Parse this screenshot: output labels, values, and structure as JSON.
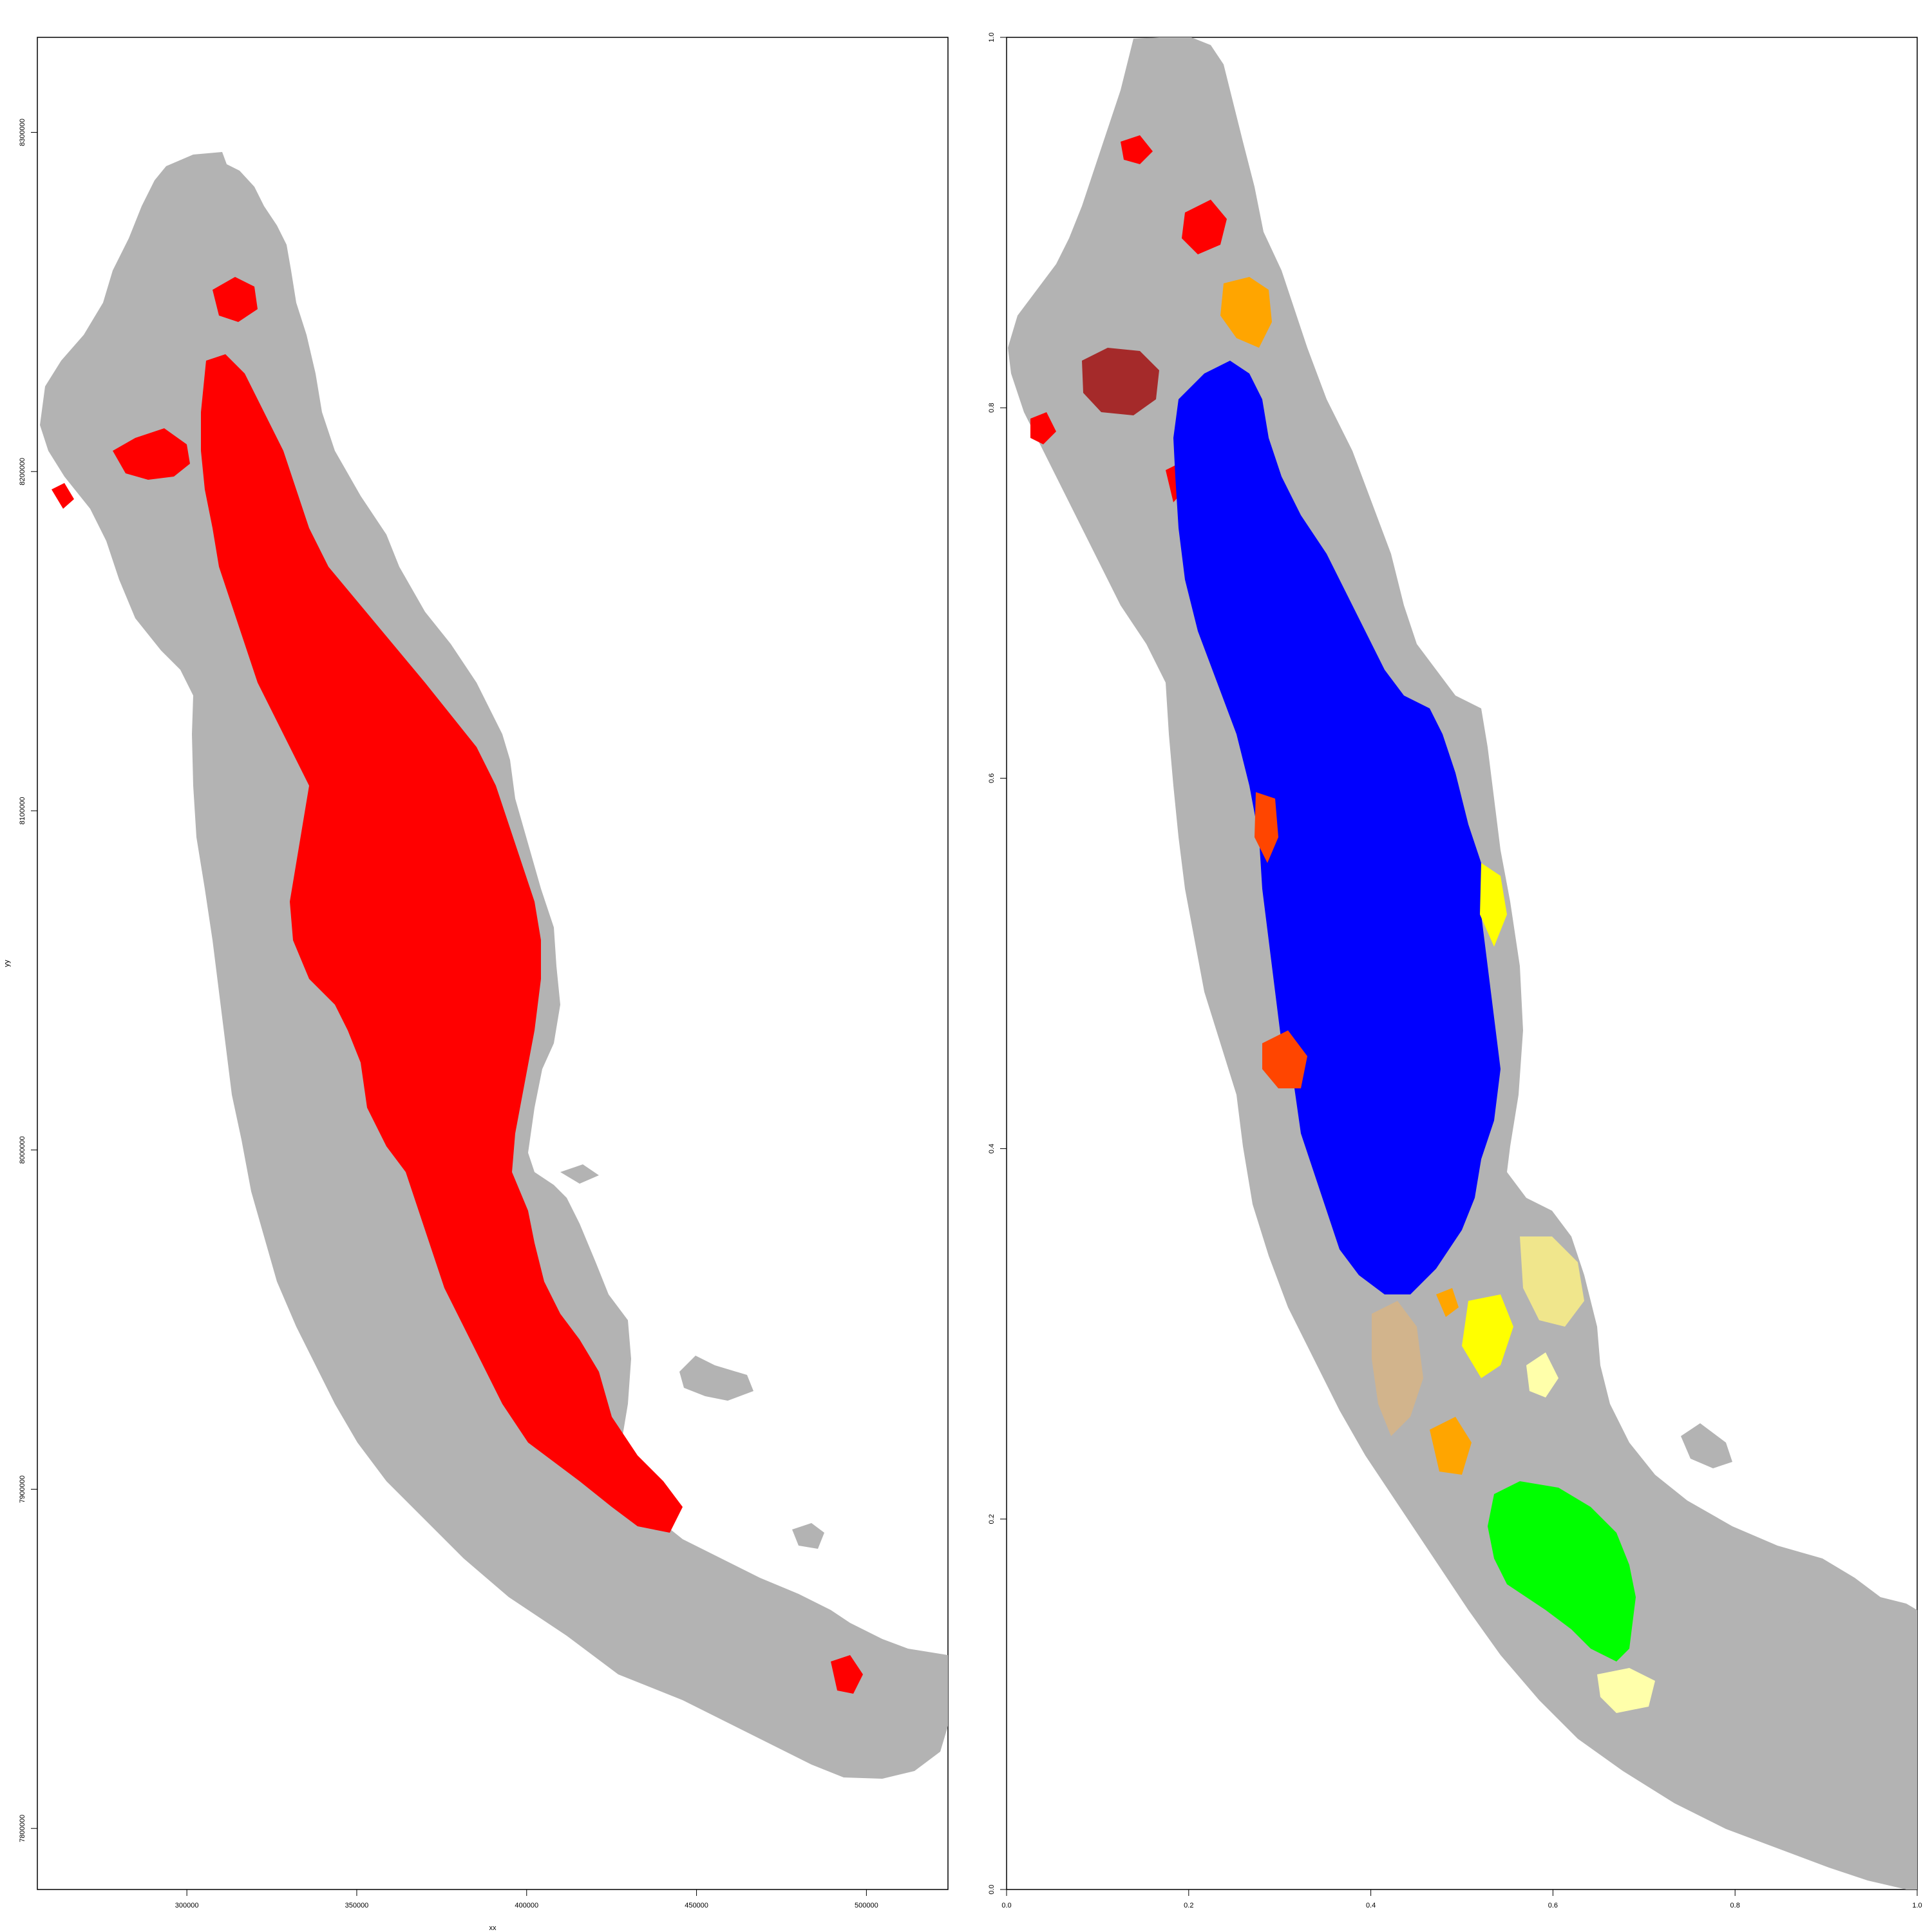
{
  "panels": [
    {
      "id": "left",
      "xlabel": "xx",
      "ylabel": "yy",
      "x_ticks": [
        {
          "value": 300000,
          "label": "300000"
        },
        {
          "value": 350000,
          "label": "350000"
        },
        {
          "value": 400000,
          "label": "400000"
        },
        {
          "value": 450000,
          "label": "450000"
        },
        {
          "value": 500000,
          "label": "500000"
        }
      ],
      "y_ticks": [
        {
          "value": 7800000,
          "label": "7800000"
        },
        {
          "value": 7900000,
          "label": "7900000"
        },
        {
          "value": 8000000,
          "label": "8000000"
        },
        {
          "value": 8100000,
          "label": "8100000"
        },
        {
          "value": 8200000,
          "label": "8200000"
        },
        {
          "value": 8300000,
          "label": "8300000"
        }
      ],
      "xlim": [
        256000,
        524000
      ],
      "ylim": [
        7782000,
        8328000
      ],
      "categories": [
        {
          "name": "background region",
          "color": "#b3b3b3"
        },
        {
          "name": "selected class",
          "color": "#ff0000"
        }
      ]
    },
    {
      "id": "right",
      "xlabel": "",
      "ylabel": "",
      "x_ticks": [
        {
          "value": 0.0,
          "label": "0.0"
        },
        {
          "value": 0.2,
          "label": "0.2"
        },
        {
          "value": 0.4,
          "label": "0.4"
        },
        {
          "value": 0.6,
          "label": "0.6"
        },
        {
          "value": 0.8,
          "label": "0.8"
        },
        {
          "value": 1.0,
          "label": "1.0"
        }
      ],
      "y_ticks": [
        {
          "value": 0.0,
          "label": "0.0"
        },
        {
          "value": 0.2,
          "label": "0.2"
        },
        {
          "value": 0.4,
          "label": "0.4"
        },
        {
          "value": 0.6,
          "label": "0.6"
        },
        {
          "value": 0.8,
          "label": "0.8"
        },
        {
          "value": 1.0,
          "label": "1.0"
        }
      ],
      "xlim": [
        0,
        1
      ],
      "ylim": [
        0,
        1
      ],
      "categories": [
        {
          "name": "background region",
          "color": "#b3b3b3"
        },
        {
          "name": "cluster red",
          "color": "#ff0000"
        },
        {
          "name": "cluster orange-red",
          "color": "#ff4500"
        },
        {
          "name": "cluster brown",
          "color": "#a52a2a"
        },
        {
          "name": "cluster orange",
          "color": "#ffa500"
        },
        {
          "name": "cluster blue",
          "color": "#0000ff"
        },
        {
          "name": "cluster yellow",
          "color": "#ffff00"
        },
        {
          "name": "cluster khaki",
          "color": "#f0e68c"
        },
        {
          "name": "cluster tan",
          "color": "#d2b48c"
        },
        {
          "name": "cluster green",
          "color": "#00ff00"
        },
        {
          "name": "cluster light-yellow",
          "color": "#ffffaa"
        }
      ]
    }
  ]
}
